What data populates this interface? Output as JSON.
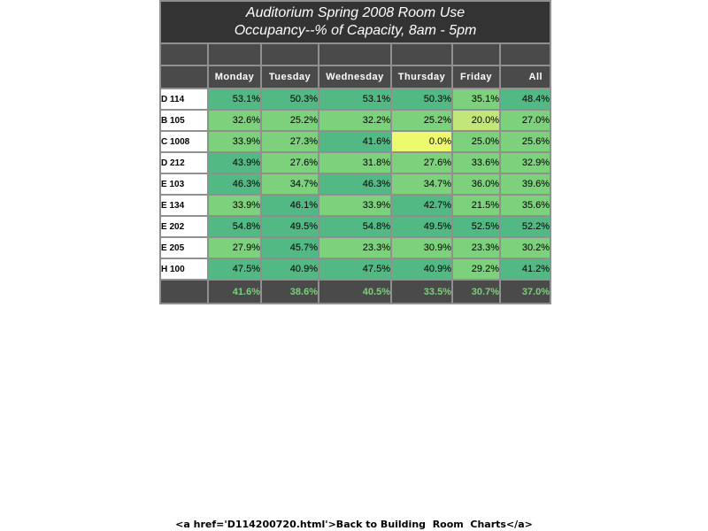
{
  "chart_data": {
    "type": "heatmap",
    "title": "Auditorium Spring 2008 Room Use",
    "subtitle": "Occupancy--% of Capacity, 8am - 5pm",
    "columns": [
      "Monday",
      "Tuesday",
      "Wednesday",
      "Thursday",
      "Friday",
      "All"
    ],
    "rows": [
      {
        "label": "D 114",
        "values": [
          53.1,
          50.3,
          53.1,
          50.3,
          35.1,
          48.4
        ]
      },
      {
        "label": "B 105",
        "values": [
          32.6,
          25.2,
          32.2,
          25.2,
          20.0,
          27.0
        ]
      },
      {
        "label": "C 1008",
        "values": [
          33.9,
          27.3,
          41.6,
          0.0,
          25.0,
          25.6
        ]
      },
      {
        "label": "D 212",
        "values": [
          43.9,
          27.6,
          31.8,
          27.6,
          33.6,
          32.9
        ]
      },
      {
        "label": "E 103",
        "values": [
          46.3,
          34.7,
          46.3,
          34.7,
          36.0,
          39.6
        ]
      },
      {
        "label": "E 134",
        "values": [
          33.9,
          46.1,
          33.9,
          42.7,
          21.5,
          35.6
        ]
      },
      {
        "label": "E 202",
        "values": [
          54.8,
          49.5,
          54.8,
          49.5,
          52.5,
          52.2
        ]
      },
      {
        "label": "E 205",
        "values": [
          27.9,
          45.7,
          23.3,
          30.9,
          23.3,
          30.2
        ]
      },
      {
        "label": "H 100",
        "values": [
          47.5,
          40.9,
          47.5,
          40.9,
          29.2,
          41.2
        ]
      }
    ],
    "totals": [
      41.6,
      38.6,
      40.5,
      33.5,
      30.7,
      37.0
    ],
    "value_suffix": "%",
    "colors": {
      "high": "#52b884",
      "mid": "#7dd07c",
      "low": "#c2e67a",
      "zero": "#eefa6e"
    }
  },
  "footer": {
    "back_link_text": "<a href='D114200720.html'>Back to Building  Room  Charts</a>"
  }
}
